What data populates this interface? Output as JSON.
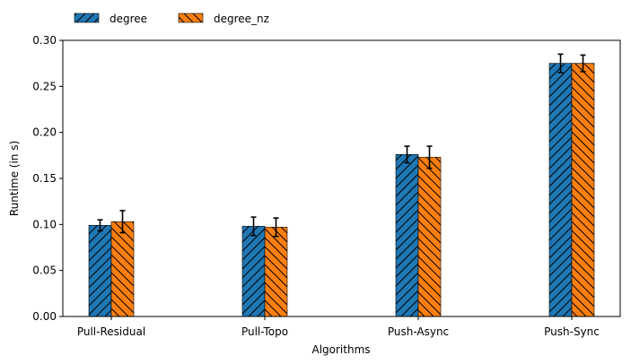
{
  "chart_data": {
    "type": "bar",
    "title": "",
    "xlabel": "Algorithms",
    "ylabel": "Runtime (in s)",
    "categories": [
      "Pull-Residual",
      "Pull-Topo",
      "Push-Async",
      "Push-Sync"
    ],
    "ylim": [
      0,
      0.3
    ],
    "yticks": [
      "0.00",
      "0.05",
      "0.10",
      "0.15",
      "0.20",
      "0.25",
      "0.30"
    ],
    "grid": false,
    "legend_position": "top-left, outside plot",
    "series": [
      {
        "name": "degree",
        "color": "#1f77b4",
        "hatch": "forward-slash",
        "values": [
          0.099,
          0.098,
          0.176,
          0.275
        ],
        "errors": [
          0.006,
          0.01,
          0.009,
          0.01
        ]
      },
      {
        "name": "degree_nz",
        "color": "#ff7f0e",
        "hatch": "back-slash",
        "values": [
          0.103,
          0.097,
          0.173,
          0.275
        ],
        "errors": [
          0.012,
          0.01,
          0.012,
          0.009
        ]
      }
    ]
  }
}
